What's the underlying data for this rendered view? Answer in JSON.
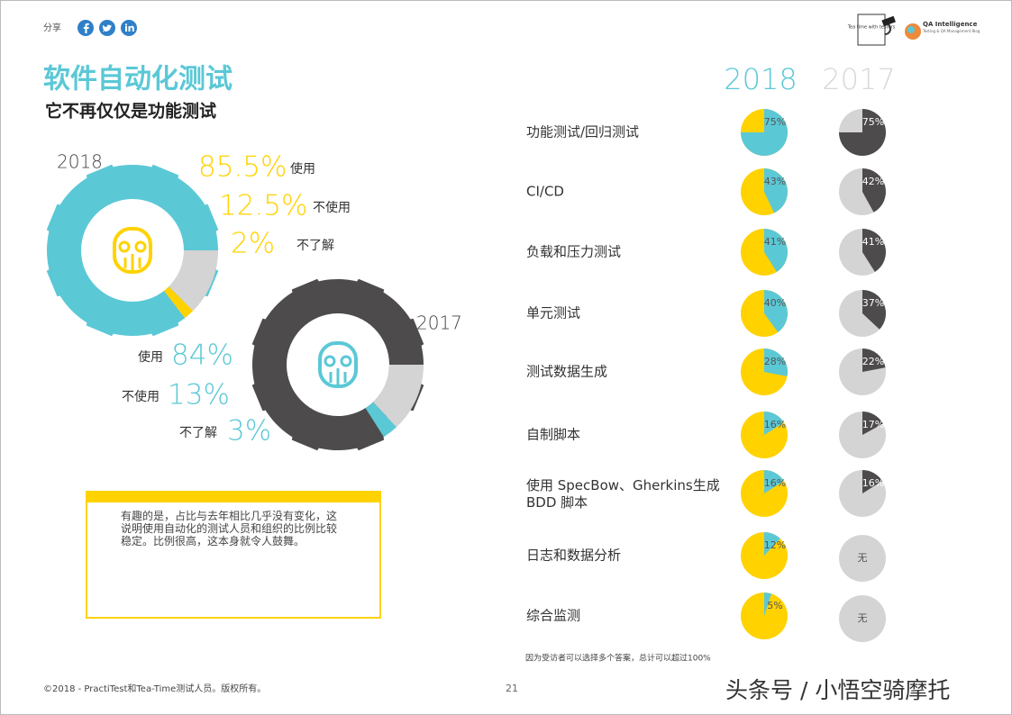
{
  "header": {
    "share": "分享",
    "logo_left": "Tea time with testers",
    "logo_right": "QA Intelligence",
    "logo_right_sub": "Testing & QA Management Blog"
  },
  "title": "软件自动化测试",
  "subtitle": "它不再仅仅是功能测试",
  "gears": [
    {
      "type": "pie",
      "year": "2018",
      "label_color": "#ffd200",
      "series": [
        {
          "name": "使用",
          "value": 85.5,
          "label": "85.5%",
          "color": "#5bc8d6"
        },
        {
          "name": "不使用",
          "value": 12.5,
          "label": "12.5%",
          "color": "#d4d4d4"
        },
        {
          "name": "不了解",
          "value": 2,
          "label": "2%",
          "color": "#ffd200"
        }
      ]
    },
    {
      "type": "pie",
      "year": "2017",
      "label_color": "#5bc8d6",
      "series": [
        {
          "name": "使用",
          "value": 84,
          "label": "84%",
          "color": "#4d4b4b"
        },
        {
          "name": "不使用",
          "value": 13,
          "label": "13%",
          "color": "#d4d4d4"
        },
        {
          "name": "不了解",
          "value": 3,
          "label": "3%",
          "color": "#5bc8d6"
        }
      ]
    }
  ],
  "callout": "有趣的是，占比与去年相比几乎没有变化，这说明使用自动化的测试人员和组织的比例比较稳定。比例很高，这本身就令人鼓舞。",
  "comparison": {
    "type": "pie",
    "categories": [
      "功能测试/回归测试",
      "CI/CD",
      "负载和压力测试",
      "单元测试",
      "测试数据生成",
      "自制脚本",
      "使用 SpecBow、Gherkins生成BDD 脚本",
      "日志和数据分析",
      "综合监测"
    ],
    "series": [
      {
        "name": "2018",
        "color": "#5bc8d6",
        "rest_color": "#ffd200",
        "header_color": "#5bc8d6",
        "values": [
          75,
          43,
          41,
          40,
          28,
          16,
          16,
          12,
          5
        ],
        "value_labels": [
          "75%",
          "43%",
          "41%",
          "40%",
          "28%",
          "16%",
          "16%",
          "12%",
          "5%"
        ]
      },
      {
        "name": "2017",
        "color": "#4d4b4b",
        "rest_color": "#d4d4d4",
        "header_color": "#d8d8d8",
        "values": [
          75,
          42,
          41,
          37,
          22,
          17,
          16,
          null,
          null
        ],
        "value_labels": [
          "75%",
          "42%",
          "41%",
          "37%",
          "22%",
          "17%",
          "16%",
          "无",
          "无"
        ]
      }
    ],
    "note": "因为受访者可以选择多个答案，总计可以超过100%"
  },
  "footer": {
    "copyright": "©2018 - PractiTest和Tea-Time测试人员。版权所有。",
    "page": "21",
    "watermark": "头条号 / 小悟空骑摩托"
  }
}
